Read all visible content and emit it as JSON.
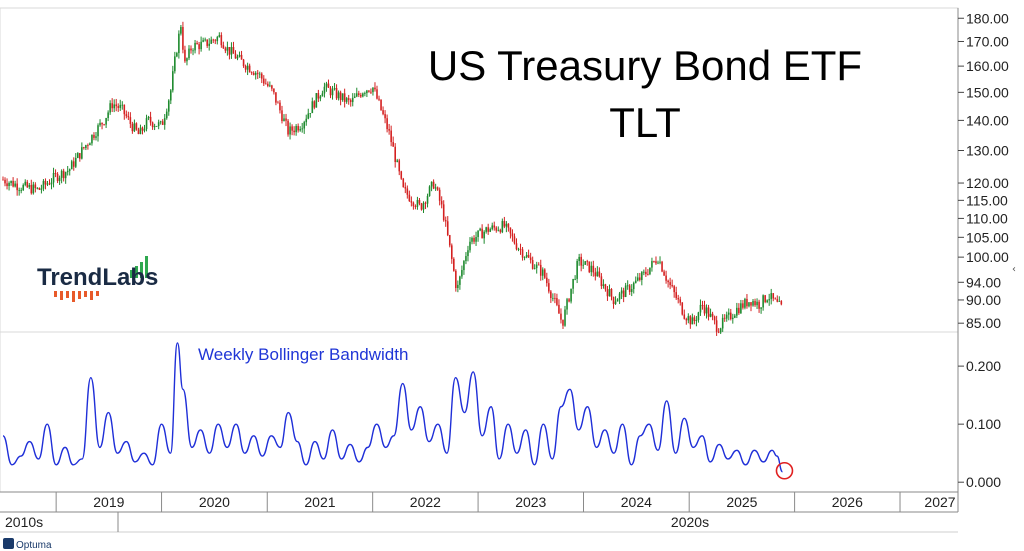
{
  "chart_data": [
    {
      "type": "candlestick",
      "title_line1": "US Treasury Bond ETF",
      "title_line2": "TLT",
      "y_scale": "log",
      "ylim": [
        84,
        181
      ],
      "y_ticks": [
        "180.00",
        "170.00",
        "160.00",
        "150.00",
        "140.00",
        "130.00",
        "120.00",
        "115.00",
        "110.00",
        "105.00",
        "100.00",
        "94.00",
        "90.00",
        "85.00"
      ],
      "y_tick_values": [
        180,
        170,
        160,
        150,
        140,
        130,
        120,
        115,
        110,
        105,
        100,
        94,
        90,
        85
      ],
      "x_range": [
        "2018-07-01",
        "2027-06-30"
      ],
      "series": [
        {
          "values": [
            [
              "2018-07-01",
              121
            ],
            [
              "2018-09-01",
              119
            ],
            [
              "2018-11-01",
              118
            ],
            [
              "2019-01-01",
              122
            ],
            [
              "2019-02-15",
              124
            ],
            [
              "2019-04-01",
              130
            ],
            [
              "2019-05-15",
              136
            ],
            [
              "2019-06-15",
              140
            ],
            [
              "2019-07-15",
              146
            ],
            [
              "2019-08-15",
              144
            ],
            [
              "2019-09-15",
              139
            ],
            [
              "2019-10-15",
              135
            ],
            [
              "2019-11-15",
              140
            ],
            [
              "2020-01-01",
              138
            ],
            [
              "2020-02-01",
              150
            ],
            [
              "2020-02-20",
              165
            ],
            [
              "2020-03-09",
              178
            ],
            [
              "2020-03-20",
              160
            ],
            [
              "2020-04-15",
              168
            ],
            [
              "2020-06-01",
              169
            ],
            [
              "2020-07-20",
              172
            ],
            [
              "2020-08-15",
              167
            ],
            [
              "2020-10-01",
              162
            ],
            [
              "2020-12-01",
              157
            ],
            [
              "2021-01-20",
              150
            ],
            [
              "2021-03-15",
              136
            ],
            [
              "2021-05-01",
              139
            ],
            [
              "2021-07-15",
              152
            ],
            [
              "2021-09-01",
              149
            ],
            [
              "2021-10-15",
              146
            ],
            [
              "2021-12-01",
              151
            ],
            [
              "2022-01-01",
              152
            ],
            [
              "2022-03-01",
              135
            ],
            [
              "2022-04-15",
              118
            ],
            [
              "2022-06-15",
              113
            ],
            [
              "2022-08-01",
              120
            ],
            [
              "2022-09-01",
              112
            ],
            [
              "2022-10-20",
              92
            ],
            [
              "2022-12-01",
              104
            ],
            [
              "2023-02-01",
              107
            ],
            [
              "2023-04-01",
              108
            ],
            [
              "2023-05-15",
              103
            ],
            [
              "2023-07-01",
              99
            ],
            [
              "2023-08-15",
              96
            ],
            [
              "2023-10-20",
              85
            ],
            [
              "2023-12-15",
              99
            ],
            [
              "2024-02-01",
              97
            ],
            [
              "2024-04-15",
              90
            ],
            [
              "2024-06-15",
              93
            ],
            [
              "2024-08-01",
              96
            ],
            [
              "2024-09-15",
              100
            ],
            [
              "2024-10-20",
              94
            ],
            [
              "2024-12-15",
              87
            ],
            [
              "2025-01-15",
              85
            ],
            [
              "2025-02-15",
              89
            ],
            [
              "2025-04-10",
              84
            ],
            [
              "2025-05-15",
              86
            ],
            [
              "2025-06-15",
              88
            ],
            [
              "2025-08-01",
              90
            ],
            [
              "2025-09-01",
              89
            ],
            [
              "2025-10-01",
              91
            ],
            [
              "2025-11-01",
              89
            ],
            [
              "2025-11-20",
              88
            ]
          ]
        }
      ]
    },
    {
      "type": "line",
      "label": "Weekly Bollinger Bandwidth",
      "ylim": [
        -0.01,
        0.245
      ],
      "y_ticks": [
        "0.200",
        "0.100",
        "0.000"
      ],
      "y_tick_values": [
        0.2,
        0.1,
        0.0
      ],
      "line_color": "#1f2fd8",
      "series": [
        {
          "values": [
            [
              "2018-07-01",
              0.08
            ],
            [
              "2018-08-01",
              0.03
            ],
            [
              "2018-09-01",
              0.045
            ],
            [
              "2018-10-01",
              0.07
            ],
            [
              "2018-11-01",
              0.04
            ],
            [
              "2018-12-01",
              0.1
            ],
            [
              "2019-01-01",
              0.03
            ],
            [
              "2019-02-01",
              0.06
            ],
            [
              "2019-03-01",
              0.03
            ],
            [
              "2019-04-01",
              0.04
            ],
            [
              "2019-05-01",
              0.18
            ],
            [
              "2019-06-01",
              0.06
            ],
            [
              "2019-07-01",
              0.12
            ],
            [
              "2019-08-01",
              0.05
            ],
            [
              "2019-09-01",
              0.07
            ],
            [
              "2019-10-01",
              0.035
            ],
            [
              "2019-11-01",
              0.05
            ],
            [
              "2019-12-01",
              0.03
            ],
            [
              "2020-01-01",
              0.1
            ],
            [
              "2020-02-01",
              0.05
            ],
            [
              "2020-02-25",
              0.24
            ],
            [
              "2020-03-15",
              0.16
            ],
            [
              "2020-04-15",
              0.06
            ],
            [
              "2020-05-15",
              0.09
            ],
            [
              "2020-06-15",
              0.05
            ],
            [
              "2020-07-15",
              0.1
            ],
            [
              "2020-08-15",
              0.06
            ],
            [
              "2020-09-15",
              0.1
            ],
            [
              "2020-10-15",
              0.05
            ],
            [
              "2020-11-15",
              0.08
            ],
            [
              "2020-12-15",
              0.045
            ],
            [
              "2021-01-15",
              0.08
            ],
            [
              "2021-02-15",
              0.06
            ],
            [
              "2021-03-15",
              0.12
            ],
            [
              "2021-04-15",
              0.07
            ],
            [
              "2021-05-15",
              0.03
            ],
            [
              "2021-06-15",
              0.07
            ],
            [
              "2021-07-15",
              0.04
            ],
            [
              "2021-08-15",
              0.09
            ],
            [
              "2021-09-15",
              0.04
            ],
            [
              "2021-10-15",
              0.065
            ],
            [
              "2021-11-15",
              0.035
            ],
            [
              "2021-12-15",
              0.06
            ],
            [
              "2022-01-15",
              0.1
            ],
            [
              "2022-02-15",
              0.06
            ],
            [
              "2022-03-15",
              0.08
            ],
            [
              "2022-04-15",
              0.17
            ],
            [
              "2022-05-15",
              0.09
            ],
            [
              "2022-06-15",
              0.13
            ],
            [
              "2022-07-15",
              0.07
            ],
            [
              "2022-08-15",
              0.1
            ],
            [
              "2022-09-15",
              0.05
            ],
            [
              "2022-10-15",
              0.18
            ],
            [
              "2022-11-15",
              0.12
            ],
            [
              "2022-12-15",
              0.19
            ],
            [
              "2023-01-15",
              0.08
            ],
            [
              "2023-02-15",
              0.13
            ],
            [
              "2023-03-15",
              0.04
            ],
            [
              "2023-04-15",
              0.1
            ],
            [
              "2023-05-15",
              0.05
            ],
            [
              "2023-06-15",
              0.09
            ],
            [
              "2023-07-15",
              0.03
            ],
            [
              "2023-08-15",
              0.1
            ],
            [
              "2023-09-15",
              0.04
            ],
            [
              "2023-10-15",
              0.13
            ],
            [
              "2023-11-15",
              0.16
            ],
            [
              "2023-12-15",
              0.09
            ],
            [
              "2024-01-15",
              0.13
            ],
            [
              "2024-02-15",
              0.06
            ],
            [
              "2024-03-15",
              0.09
            ],
            [
              "2024-04-15",
              0.05
            ],
            [
              "2024-05-15",
              0.1
            ],
            [
              "2024-06-15",
              0.03
            ],
            [
              "2024-07-15",
              0.08
            ],
            [
              "2024-08-15",
              0.1
            ],
            [
              "2024-09-15",
              0.055
            ],
            [
              "2024-10-15",
              0.14
            ],
            [
              "2024-11-15",
              0.05
            ],
            [
              "2024-12-15",
              0.11
            ],
            [
              "2025-01-15",
              0.06
            ],
            [
              "2025-02-15",
              0.08
            ],
            [
              "2025-03-15",
              0.035
            ],
            [
              "2025-04-15",
              0.065
            ],
            [
              "2025-05-15",
              0.04
            ],
            [
              "2025-06-15",
              0.055
            ],
            [
              "2025-07-15",
              0.03
            ],
            [
              "2025-08-15",
              0.055
            ],
            [
              "2025-09-15",
              0.035
            ],
            [
              "2025-10-15",
              0.055
            ],
            [
              "2025-11-01",
              0.045
            ],
            [
              "2025-11-20",
              0.018
            ]
          ]
        }
      ],
      "highlight": {
        "date": "2025-11-20",
        "value": 0.018,
        "color": "#e02020"
      }
    }
  ],
  "x_axis": {
    "years": [
      "2019",
      "2020",
      "2021",
      "2022",
      "2023",
      "2024",
      "2025",
      "2026",
      "2027"
    ],
    "decades": [
      "2010s",
      "2020s"
    ]
  },
  "branding": {
    "logo_text": "TrendLabs",
    "logo_colors": [
      "#2fa84f",
      "#e85a2a"
    ],
    "watermark_text": "Optuma"
  },
  "colors": {
    "up": "#1e8a2e",
    "down": "#d42020",
    "bandwidth": "#1f2fd8"
  }
}
